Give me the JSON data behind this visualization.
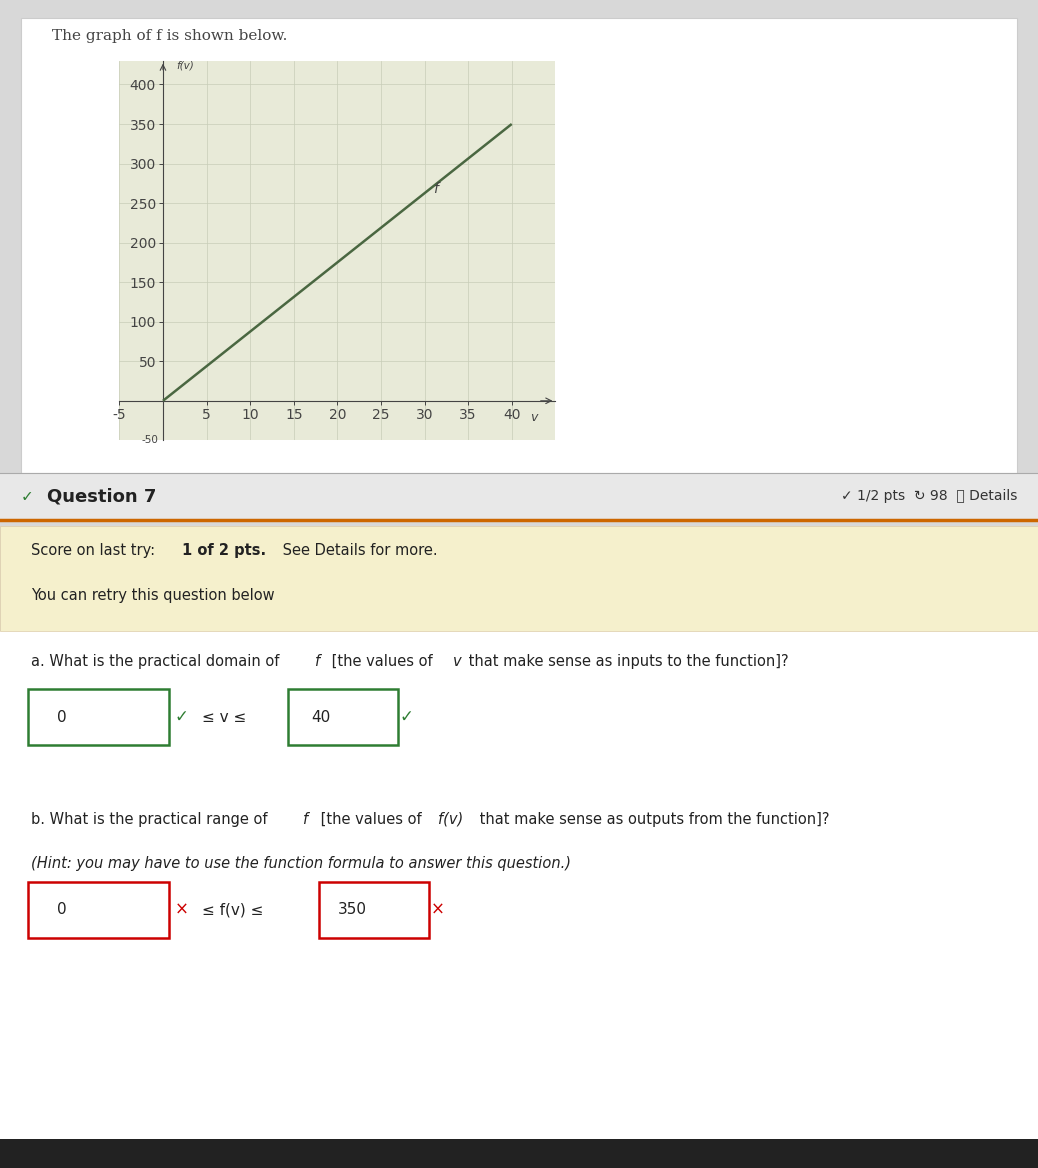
{
  "graph_title": "The graph of f is shown below.",
  "x_min": -5,
  "x_max": 45,
  "y_min": -50,
  "y_max": 430,
  "x_ticks": [
    -5,
    5,
    10,
    15,
    20,
    25,
    30,
    35,
    40
  ],
  "y_ticks": [
    50,
    100,
    150,
    200,
    250,
    300,
    350,
    400
  ],
  "x_tick_labels": [
    "-5",
    "5",
    "10",
    "15",
    "20",
    "25",
    "30",
    "35",
    "40"
  ],
  "line_x": [
    0,
    40
  ],
  "line_y": [
    0,
    350
  ],
  "line_color": "#4a6741",
  "grid_color": "#c8cdb8",
  "axis_color": "#444444",
  "graph_bg": "#e8ead8",
  "page_bg": "#d8d8d8",
  "white_card_bg": "#ffffff",
  "question_section_bg": "#e8e8e8",
  "score_bg": "#f5f0cc",
  "main_bg": "#ffffff",
  "question_header": "Question 7",
  "pts_text": "1/2 pts  98  Details",
  "score_line1": "Score on last try: ",
  "score_line1b": "1 of 2 pts.",
  "score_line1c": " See Details for more.",
  "retry_text": "You can retry this question below",
  "q_a_text": "a. What is the practical domain of ",
  "q_a_f": "f",
  "q_a_text2": " [the values of ",
  "q_a_v": "v",
  "q_a_text3": " that make sense as inputs to the function]?",
  "domain_left": "0",
  "domain_check1": "✓",
  "domain_mid": " ≤ v ≤ ",
  "domain_right": "40",
  "domain_check2": "✓",
  "q_b_line1": "b. What is the practical range of ",
  "q_b_f": "f",
  "q_b_line1b": " [the values of ",
  "q_b_fv": "f(v)",
  "q_b_line1c": " that make sense as outputs from the function]?",
  "q_b_line2": "(Hint: you may have to use the function formula to answer this question.)",
  "range_left": "0",
  "range_x1": "×",
  "range_mid": " ≤ f(v) ≤ ",
  "range_right": "350",
  "range_x2": "×",
  "check_green": "#2e7d32",
  "x_red": "#cc0000",
  "orange_line": "#cc6600"
}
